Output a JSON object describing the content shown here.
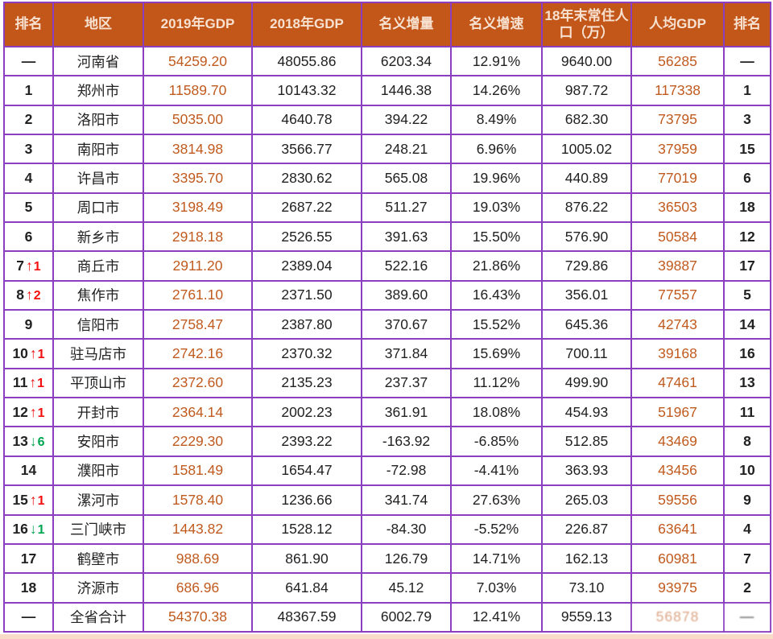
{
  "colors": {
    "header_bg": "#c3571a",
    "header_fg": "#f7e2d1",
    "accent": "#c05a1e",
    "border": "#8b3fc0",
    "text": "#212121",
    "up": "#f40f0f",
    "down": "#00a650",
    "strip": "#f9dcc8",
    "page_bg": "#ffffff"
  },
  "icons": {
    "up_arrow": "↑",
    "down_arrow": "↓"
  },
  "chart_data": {
    "type": "table",
    "columns": [
      "排名",
      "地区",
      "2019年GDP",
      "2018年GDP",
      "名义增量",
      "名义增速",
      "18年末常住人口（万）",
      "人均GDP",
      "排名"
    ],
    "rows": [
      {
        "rank": "—",
        "change_dir": "",
        "change": "",
        "region": "河南省",
        "gdp_2019": "54259.20",
        "gdp_2018": "48055.86",
        "increment": "6203.34",
        "growth": "12.91%",
        "population": "9640.00",
        "per_capita": "56285",
        "pc_rank": "—",
        "distressed": false
      },
      {
        "rank": "1",
        "change_dir": "",
        "change": "",
        "region": "郑州市",
        "gdp_2019": "11589.70",
        "gdp_2018": "10143.32",
        "increment": "1446.38",
        "growth": "14.26%",
        "population": "987.72",
        "per_capita": "117338",
        "pc_rank": "1",
        "distressed": false
      },
      {
        "rank": "2",
        "change_dir": "",
        "change": "",
        "region": "洛阳市",
        "gdp_2019": "5035.00",
        "gdp_2018": "4640.78",
        "increment": "394.22",
        "growth": "8.49%",
        "population": "682.30",
        "per_capita": "73795",
        "pc_rank": "3",
        "distressed": false
      },
      {
        "rank": "3",
        "change_dir": "",
        "change": "",
        "region": "南阳市",
        "gdp_2019": "3814.98",
        "gdp_2018": "3566.77",
        "increment": "248.21",
        "growth": "6.96%",
        "population": "1005.02",
        "per_capita": "37959",
        "pc_rank": "15",
        "distressed": false
      },
      {
        "rank": "4",
        "change_dir": "",
        "change": "",
        "region": "许昌市",
        "gdp_2019": "3395.70",
        "gdp_2018": "2830.62",
        "increment": "565.08",
        "growth": "19.96%",
        "population": "440.89",
        "per_capita": "77019",
        "pc_rank": "6",
        "distressed": false
      },
      {
        "rank": "5",
        "change_dir": "",
        "change": "",
        "region": "周口市",
        "gdp_2019": "3198.49",
        "gdp_2018": "2687.22",
        "increment": "511.27",
        "growth": "19.03%",
        "population": "876.22",
        "per_capita": "36503",
        "pc_rank": "18",
        "distressed": false
      },
      {
        "rank": "6",
        "change_dir": "",
        "change": "",
        "region": "新乡市",
        "gdp_2019": "2918.18",
        "gdp_2018": "2526.55",
        "increment": "391.63",
        "growth": "15.50%",
        "population": "576.90",
        "per_capita": "50584",
        "pc_rank": "12",
        "distressed": false
      },
      {
        "rank": "7",
        "change_dir": "up",
        "change": "1",
        "region": "商丘市",
        "gdp_2019": "2911.20",
        "gdp_2018": "2389.04",
        "increment": "522.16",
        "growth": "21.86%",
        "population": "729.86",
        "per_capita": "39887",
        "pc_rank": "17",
        "distressed": false
      },
      {
        "rank": "8",
        "change_dir": "up",
        "change": "2",
        "region": "焦作市",
        "gdp_2019": "2761.10",
        "gdp_2018": "2371.50",
        "increment": "389.60",
        "growth": "16.43%",
        "population": "356.01",
        "per_capita": "77557",
        "pc_rank": "5",
        "distressed": false
      },
      {
        "rank": "9",
        "change_dir": "",
        "change": "",
        "region": "信阳市",
        "gdp_2019": "2758.47",
        "gdp_2018": "2387.80",
        "increment": "370.67",
        "growth": "15.52%",
        "population": "645.36",
        "per_capita": "42743",
        "pc_rank": "14",
        "distressed": false
      },
      {
        "rank": "10",
        "change_dir": "up",
        "change": "1",
        "region": "驻马店市",
        "gdp_2019": "2742.16",
        "gdp_2018": "2370.32",
        "increment": "371.84",
        "growth": "15.69%",
        "population": "700.11",
        "per_capita": "39168",
        "pc_rank": "16",
        "distressed": false
      },
      {
        "rank": "11",
        "change_dir": "up",
        "change": "1",
        "region": "平顶山市",
        "gdp_2019": "2372.60",
        "gdp_2018": "2135.23",
        "increment": "237.37",
        "growth": "11.12%",
        "population": "499.90",
        "per_capita": "47461",
        "pc_rank": "13",
        "distressed": false
      },
      {
        "rank": "12",
        "change_dir": "up",
        "change": "1",
        "region": "开封市",
        "gdp_2019": "2364.14",
        "gdp_2018": "2002.23",
        "increment": "361.91",
        "growth": "18.08%",
        "population": "454.93",
        "per_capita": "51967",
        "pc_rank": "11",
        "distressed": false
      },
      {
        "rank": "13",
        "change_dir": "down",
        "change": "6",
        "region": "安阳市",
        "gdp_2019": "2229.30",
        "gdp_2018": "2393.22",
        "increment": "-163.92",
        "growth": "-6.85%",
        "population": "512.85",
        "per_capita": "43469",
        "pc_rank": "8",
        "distressed": false
      },
      {
        "rank": "14",
        "change_dir": "",
        "change": "",
        "region": "濮阳市",
        "gdp_2019": "1581.49",
        "gdp_2018": "1654.47",
        "increment": "-72.98",
        "growth": "-4.41%",
        "population": "363.93",
        "per_capita": "43456",
        "pc_rank": "10",
        "distressed": false
      },
      {
        "rank": "15",
        "change_dir": "up",
        "change": "1",
        "region": "漯河市",
        "gdp_2019": "1578.40",
        "gdp_2018": "1236.66",
        "increment": "341.74",
        "growth": "27.63%",
        "population": "265.03",
        "per_capita": "59556",
        "pc_rank": "9",
        "distressed": false
      },
      {
        "rank": "16",
        "change_dir": "down",
        "change": "1",
        "region": "三门峡市",
        "gdp_2019": "1443.82",
        "gdp_2018": "1528.12",
        "increment": "-84.30",
        "growth": "-5.52%",
        "population": "226.87",
        "per_capita": "63641",
        "pc_rank": "4",
        "distressed": false
      },
      {
        "rank": "17",
        "change_dir": "",
        "change": "",
        "region": "鹤壁市",
        "gdp_2019": "988.69",
        "gdp_2018": "861.90",
        "increment": "126.79",
        "growth": "14.71%",
        "population": "162.13",
        "per_capita": "60981",
        "pc_rank": "7",
        "distressed": false
      },
      {
        "rank": "18",
        "change_dir": "",
        "change": "",
        "region": "济源市",
        "gdp_2019": "686.96",
        "gdp_2018": "641.84",
        "increment": "45.12",
        "growth": "7.03%",
        "population": "73.10",
        "per_capita": "93975",
        "pc_rank": "2",
        "distressed": false
      },
      {
        "rank": "—",
        "change_dir": "",
        "change": "",
        "region": "全省合计",
        "gdp_2019": "54370.38",
        "gdp_2018": "48367.59",
        "increment": "6002.79",
        "growth": "12.41%",
        "population": "9559.13",
        "per_capita": "56878",
        "pc_rank": "—",
        "distressed": true
      }
    ]
  }
}
